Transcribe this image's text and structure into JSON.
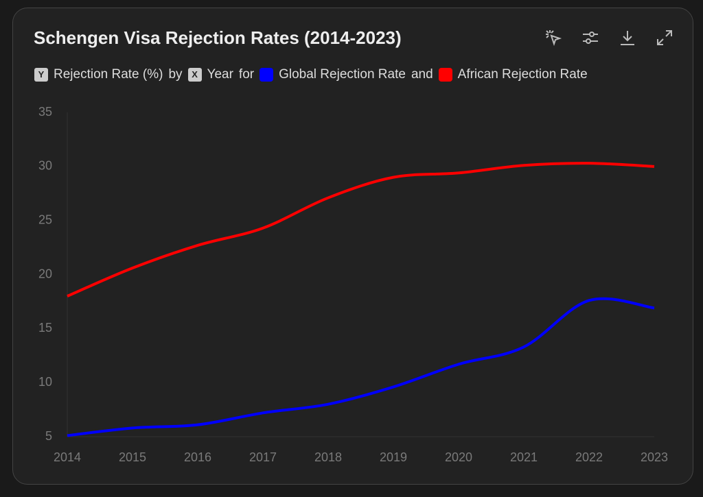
{
  "chart_data": {
    "type": "line",
    "title": "Schengen Visa Rejection Rates (2014-2023)",
    "legend_text": {
      "y_badge": "Y",
      "y_label": "Rejection Rate (%)",
      "by": "by",
      "x_badge": "X",
      "x_label": "Year",
      "for": "for",
      "and": "and"
    },
    "categories": [
      "2014",
      "2015",
      "2016",
      "2017",
      "2018",
      "2019",
      "2020",
      "2021",
      "2022",
      "2023"
    ],
    "series": [
      {
        "name": "Global Rejection Rate",
        "color": "#0000ff",
        "values": [
          5.1,
          5.8,
          6.1,
          7.2,
          8.0,
          9.6,
          11.7,
          13.3,
          17.6,
          16.9
        ]
      },
      {
        "name": "African Rejection Rate",
        "color": "#ff0000",
        "values": [
          18.0,
          20.6,
          22.7,
          24.3,
          27.1,
          29.0,
          29.4,
          30.1,
          30.3,
          30.0
        ]
      }
    ],
    "ylim": [
      5,
      35
    ],
    "yticks": [
      5,
      10,
      15,
      20,
      25,
      30,
      35
    ],
    "grid": false
  }
}
